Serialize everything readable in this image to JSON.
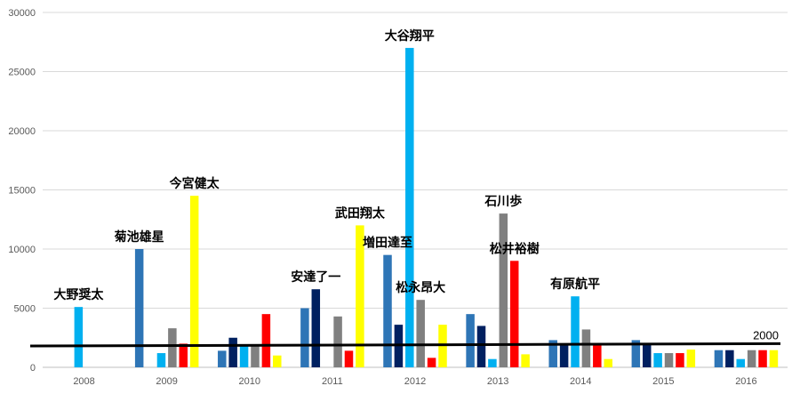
{
  "chart_data": {
    "type": "bar",
    "categories": [
      "2008",
      "2009",
      "2010",
      "2011",
      "2012",
      "2013",
      "2014",
      "2015",
      "2016"
    ],
    "series": [
      {
        "color": "#2E75B6",
        "values": [
          0,
          10000,
          1400,
          5000,
          9500,
          4500,
          2300,
          2300,
          1450
        ]
      },
      {
        "color": "#002060",
        "values": [
          0,
          0,
          2500,
          6600,
          3600,
          3500,
          2000,
          2000,
          1450
        ]
      },
      {
        "color": "#00B0F0",
        "values": [
          5100,
          1200,
          1800,
          0,
          27000,
          700,
          6000,
          1200,
          700
        ]
      },
      {
        "color": "#808080",
        "values": [
          0,
          3300,
          1800,
          4300,
          5700,
          13000,
          3200,
          1200,
          1450
        ]
      },
      {
        "color": "#FF0000",
        "values": [
          0,
          2000,
          4500,
          1400,
          800,
          9000,
          2000,
          1200,
          1450
        ]
      },
      {
        "color": "#FFFF00",
        "values": [
          0,
          14500,
          1000,
          12000,
          3600,
          1100,
          700,
          1500,
          1450
        ]
      }
    ],
    "ylim": [
      0,
      30000
    ],
    "yticks": [
      0,
      5000,
      10000,
      15000,
      20000,
      25000,
      30000
    ],
    "grid": true,
    "legend": "none",
    "annotations": [
      {
        "text": "大野奨太",
        "category": "2008",
        "series": 2,
        "value": 5100
      },
      {
        "text": "菊池雄星",
        "category": "2009",
        "series": 0,
        "value": 10000
      },
      {
        "text": "今宮健太",
        "category": "2009",
        "series": 5,
        "value": 14500
      },
      {
        "text": "安達了一",
        "category": "2011",
        "series": 1,
        "value": 6600
      },
      {
        "text": "武田翔太",
        "category": "2011",
        "series": 5,
        "value": 12000
      },
      {
        "text": "大谷翔平",
        "category": "2012",
        "series": 2,
        "value": 27000
      },
      {
        "text": "増田達至",
        "category": "2012",
        "series": 0,
        "value": 9500
      },
      {
        "text": "松永昂大",
        "category": "2012",
        "series": 3,
        "value": 5700
      },
      {
        "text": "石川歩",
        "category": "2013",
        "series": 3,
        "value": 13000
      },
      {
        "text": "松井裕樹",
        "category": "2013",
        "series": 4,
        "value": 9000
      },
      {
        "text": "有原航平",
        "category": "2014",
        "series": 2,
        "value": 6000
      }
    ],
    "reference_line": {
      "label": "2000",
      "start_value": 1800,
      "end_value": 2000,
      "color": "#000000"
    }
  }
}
